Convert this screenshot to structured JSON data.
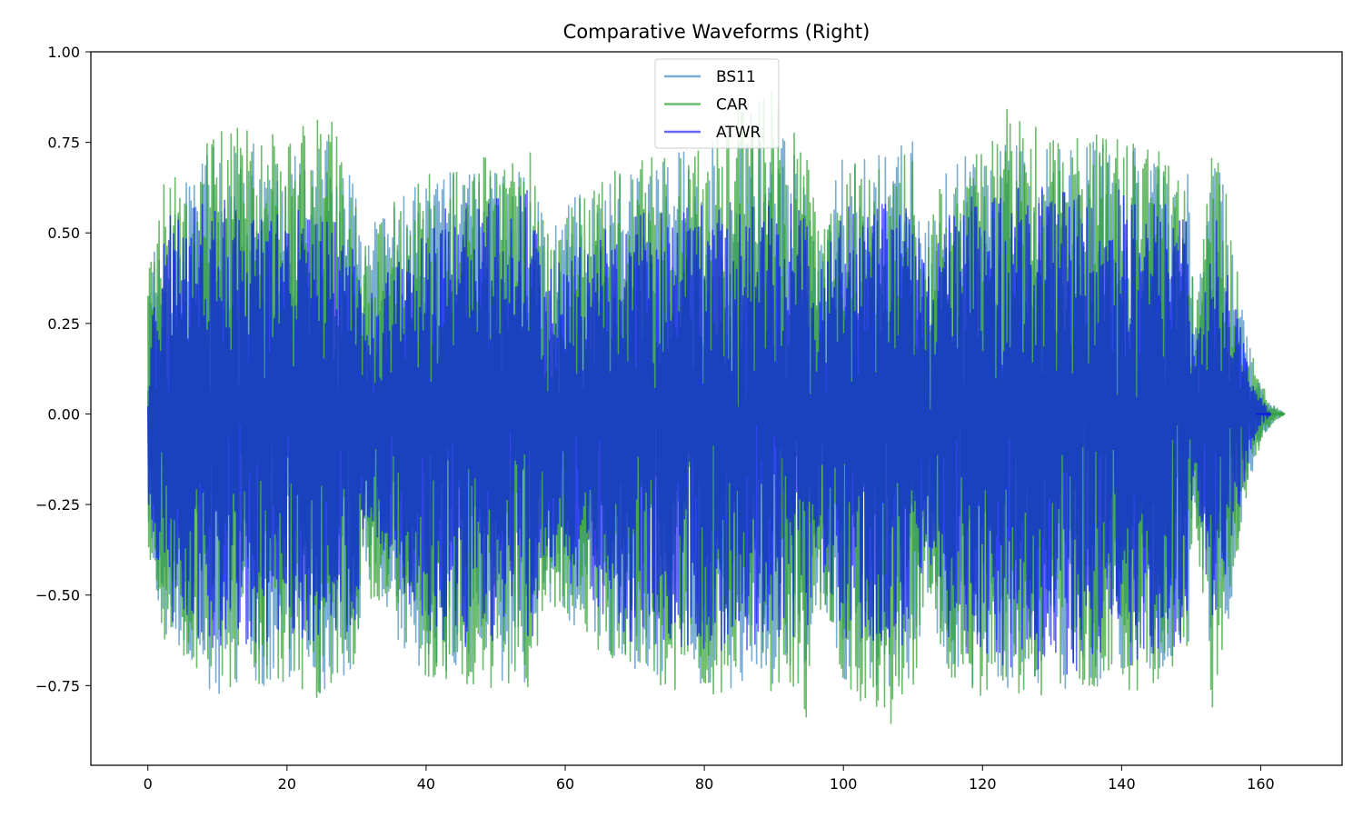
{
  "chart_data": {
    "type": "line",
    "title": "Comparative Waveforms (Right)",
    "xlabel": "",
    "ylabel": "",
    "xlim": [
      -8.2,
      171.7
    ],
    "ylim": [
      -0.97,
      1.0
    ],
    "x_ticks": [
      0,
      20,
      40,
      60,
      80,
      100,
      120,
      140,
      160
    ],
    "y_ticks": [
      1.0,
      0.75,
      0.5,
      0.25,
      0.0,
      -0.25,
      -0.5,
      -0.75
    ],
    "x_tick_labels": [
      "0",
      "20",
      "40",
      "60",
      "80",
      "100",
      "120",
      "140",
      "160"
    ],
    "y_tick_labels": [
      "1.00",
      "0.75",
      "0.50",
      "0.25",
      "0.00",
      "−0.25",
      "−0.50",
      "−0.75"
    ],
    "legend_position": "top-center",
    "grid": false,
    "series": [
      {
        "name": "BS11",
        "color": "#1f77b4",
        "opacity": 0.6,
        "x_range": [
          0,
          163.5
        ],
        "envelope": {
          "x": [
            0,
            3,
            10,
            20,
            26,
            30,
            31,
            40,
            55,
            57,
            70,
            80,
            90,
            95,
            96,
            100,
            110,
            112,
            115,
            120,
            130,
            140,
            149.5,
            150.5,
            152,
            153,
            155,
            157,
            158.5,
            160,
            161.5,
            163.5
          ],
          "upper": [
            0.38,
            0.62,
            0.78,
            0.72,
            0.8,
            0.62,
            0.5,
            0.66,
            0.7,
            0.55,
            0.7,
            0.75,
            0.78,
            0.7,
            0.55,
            0.72,
            0.76,
            0.52,
            0.68,
            0.74,
            0.76,
            0.76,
            0.68,
            0.25,
            0.55,
            0.75,
            0.6,
            0.35,
            0.18,
            0.08,
            0.03,
            0.0
          ],
          "lower": [
            -0.38,
            -0.65,
            -0.78,
            -0.74,
            -0.78,
            -0.7,
            -0.48,
            -0.74,
            -0.74,
            -0.52,
            -0.72,
            -0.76,
            -0.77,
            -0.72,
            -0.55,
            -0.74,
            -0.76,
            -0.52,
            -0.7,
            -0.77,
            -0.76,
            -0.77,
            -0.7,
            -0.27,
            -0.55,
            -0.77,
            -0.62,
            -0.36,
            -0.18,
            -0.08,
            -0.03,
            0.0
          ]
        }
      },
      {
        "name": "CAR",
        "color": "#2ca02c",
        "opacity": 0.7,
        "x_range": [
          0,
          163.5
        ],
        "envelope": {
          "x": [
            0,
            1,
            10,
            11,
            20,
            26,
            30,
            31,
            40,
            50,
            55,
            57,
            70,
            80,
            85,
            90,
            95,
            96,
            100,
            106,
            110,
            112,
            115,
            120,
            124,
            130,
            140,
            149.5,
            150.5,
            152,
            153,
            155,
            157,
            158.5,
            160,
            161.5,
            163.5
          ],
          "upper": [
            0.35,
            0.62,
            0.78,
            0.86,
            0.76,
            0.85,
            0.62,
            0.5,
            0.68,
            0.72,
            0.76,
            0.55,
            0.72,
            0.74,
            0.88,
            0.91,
            0.74,
            0.55,
            0.72,
            0.7,
            0.78,
            0.52,
            0.7,
            0.74,
            0.86,
            0.76,
            0.78,
            0.68,
            0.25,
            0.55,
            0.82,
            0.62,
            0.36,
            0.19,
            0.09,
            0.03,
            0.0
          ],
          "lower": [
            -0.35,
            -0.6,
            -0.76,
            -0.78,
            -0.74,
            -0.86,
            -0.68,
            -0.48,
            -0.74,
            -0.76,
            -0.8,
            -0.52,
            -0.74,
            -0.78,
            -0.76,
            -0.8,
            -0.84,
            -0.56,
            -0.76,
            -0.88,
            -0.78,
            -0.52,
            -0.74,
            -0.8,
            -0.78,
            -0.78,
            -0.8,
            -0.72,
            -0.27,
            -0.58,
            -0.88,
            -0.62,
            -0.37,
            -0.19,
            -0.09,
            -0.03,
            0.0
          ]
        }
      },
      {
        "name": "ATWR",
        "color": "#0000ff",
        "opacity": 0.6,
        "x_range": [
          0,
          161.5
        ],
        "envelope": {
          "x": [
            0,
            3,
            10,
            20,
            26,
            30,
            31,
            40,
            50,
            55,
            57,
            70,
            80,
            90,
            95,
            96,
            100,
            110,
            112,
            115,
            120,
            130,
            140,
            149.5,
            150.5,
            152,
            153,
            155,
            157,
            158.5,
            160,
            161.5
          ],
          "upper": [
            0.22,
            0.55,
            0.6,
            0.55,
            0.6,
            0.5,
            0.3,
            0.56,
            0.6,
            0.64,
            0.4,
            0.58,
            0.58,
            0.6,
            0.56,
            0.38,
            0.58,
            0.58,
            0.38,
            0.56,
            0.62,
            0.63,
            0.62,
            0.56,
            0.15,
            0.4,
            0.58,
            0.45,
            0.25,
            0.12,
            0.05,
            0.0
          ],
          "lower": [
            -0.25,
            -0.6,
            -0.65,
            -0.62,
            -0.64,
            -0.58,
            -0.3,
            -0.62,
            -0.66,
            -0.68,
            -0.4,
            -0.64,
            -0.66,
            -0.66,
            -0.62,
            -0.38,
            -0.64,
            -0.64,
            -0.38,
            -0.62,
            -0.7,
            -0.72,
            -0.74,
            -0.62,
            -0.15,
            -0.42,
            -0.6,
            -0.46,
            -0.26,
            -0.12,
            -0.05,
            0.0
          ]
        }
      }
    ]
  }
}
